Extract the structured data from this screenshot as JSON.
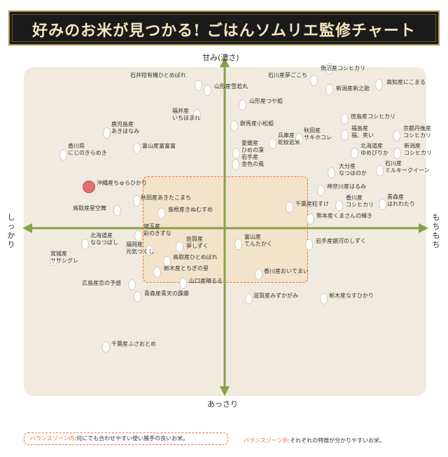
{
  "title": "好みのお米が見つかる! ごはんソムリエ監修チャート",
  "axes": {
    "top": "甘み(濃さ)",
    "bottom": "あっさり",
    "left": "しっかり",
    "right": "もちもち"
  },
  "varieties": [
    {
      "name": "石井稔有機ひとめぼれ"
    },
    {
      "name": "山形産雪若丸"
    },
    {
      "name": "石川産夢ごこち"
    },
    {
      "name": "魚沼産コシヒカリ"
    },
    {
      "name": "新潟産新之助"
    },
    {
      "name": "高知産にこまる"
    },
    {
      "name": "山形産つや姫"
    },
    {
      "name": "福井産 いちほまれ"
    },
    {
      "name": "群馬産小松姫"
    },
    {
      "name": "徳島産コシヒカリ"
    },
    {
      "name": "鹿児島産 あきほなみ"
    },
    {
      "name": "富山産富富富"
    },
    {
      "name": "秋田産 サキホコレ"
    },
    {
      "name": "福島産 福、笑い"
    },
    {
      "name": "京都丹後産 コシヒカリ"
    },
    {
      "name": "香川県 にじのきらめき"
    },
    {
      "name": "愛媛産 ひめの凜"
    },
    {
      "name": "兵庫産 蛇紋岩米"
    },
    {
      "name": "北海道産 ゆめぴりか"
    },
    {
      "name": "新潟産 コシヒカリ"
    },
    {
      "name": "岩手産 金色の風"
    },
    {
      "name": "石川産 ミルキークイーン"
    },
    {
      "name": "大分産 なつほのか"
    },
    {
      "name": "沖縄産ちゅらひかり"
    },
    {
      "name": "神奈川産はるみ"
    },
    {
      "name": "秋田産あきたこまち"
    },
    {
      "name": "香川産 コシヒカリ"
    },
    {
      "name": "青森産 はれわたり"
    },
    {
      "name": "千葉産粒すけ"
    },
    {
      "name": "鳥取産星空舞"
    },
    {
      "name": "島根産きぬむすめ"
    },
    {
      "name": "熊本産くまさんの輝き"
    },
    {
      "name": "埼玉産 彩のきずな"
    },
    {
      "name": "北海道産 ななつぼし"
    },
    {
      "name": "佐賀産 夢しずく"
    },
    {
      "name": "富山産 てんたかく"
    },
    {
      "name": "岩手産銀河のしずく"
    },
    {
      "name": "福岡産 元気つくし"
    },
    {
      "name": "宮城産 ササシグレ"
    },
    {
      "name": "鳥取産ひとめぼれ"
    },
    {
      "name": "栃木産とちぎの星"
    },
    {
      "name": "香川産おいでまい"
    },
    {
      "name": "山口産晴るる"
    },
    {
      "name": "広島産恋の予感"
    },
    {
      "name": "青森産青天の霹靂"
    },
    {
      "name": "滋賀産みずかがみ"
    },
    {
      "name": "栃木産なすひかり"
    },
    {
      "name": "千葉産ふさおとめ"
    }
  ],
  "legend": {
    "inside_label": "バランスゾーン内",
    "inside_text": ":何にでも合わせやすい使い勝手の良いお米。",
    "outside_label": "バランスゾーン外",
    "outside_text": ":それぞれの特徴が分かりやすいお米。"
  },
  "colors": {
    "banner_bg": "#1a1a1a",
    "banner_text": "#f4e7bd",
    "axis": "#8aa048",
    "zone_border": "#e8703a",
    "highlight": "#e07070"
  }
}
